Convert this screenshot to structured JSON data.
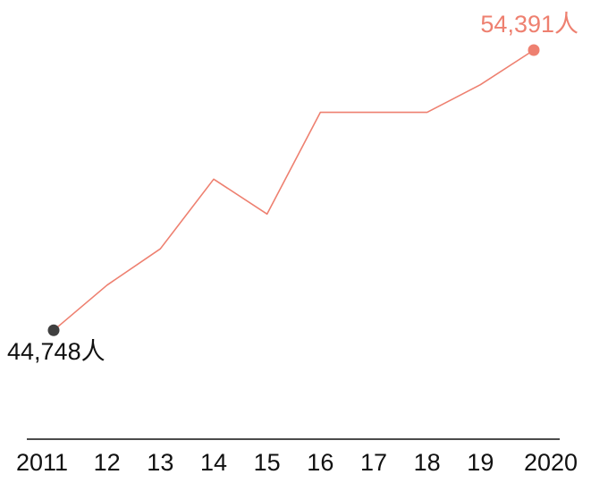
{
  "chart_data": {
    "type": "line",
    "x": [
      "2011",
      "12",
      "13",
      "14",
      "15",
      "16",
      "17",
      "18",
      "19",
      "2020"
    ],
    "series": [
      {
        "values": [
          44748,
          46300,
          47550,
          49950,
          48750,
          52250,
          52250,
          52250,
          53200,
          54391
        ]
      }
    ],
    "ylim": [
      41000,
      55500
    ],
    "grid": false,
    "annotations": {
      "start_label": "44,748人",
      "end_label": "54,391人"
    },
    "colors": {
      "line": "#ee8070",
      "end_point": "#ee8070",
      "start_point": "#404040",
      "start_label": "#111111",
      "end_label": "#ee8070",
      "axis": "#111111",
      "tick_label": "#111111"
    }
  }
}
